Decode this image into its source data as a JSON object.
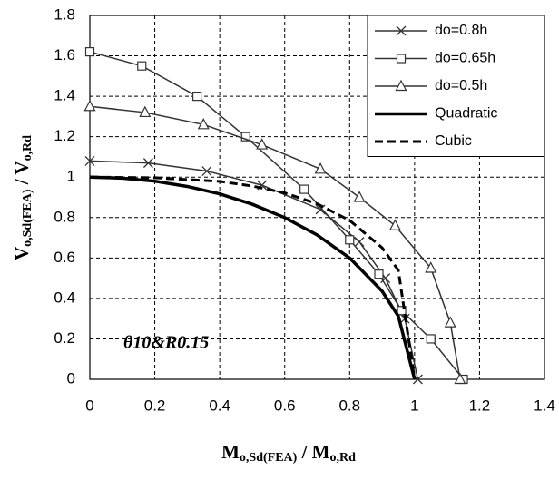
{
  "chart_data": {
    "type": "line",
    "x_label": [
      {
        "text": "M"
      },
      {
        "text": "o,Sd(FEA)",
        "sub": true
      },
      {
        "text": " / M"
      },
      {
        "text": "o,Rd",
        "sub": true
      }
    ],
    "y_label": [
      {
        "text": "V"
      },
      {
        "text": "o,Sd(FEA)",
        "sub": true
      },
      {
        "text": " / V"
      },
      {
        "text": "o,Rd",
        "sub": true
      }
    ],
    "annotation": "θ10&R0.15",
    "xlim": [
      0,
      1.4
    ],
    "xticks": [
      0,
      0.2,
      0.4,
      0.6,
      0.8,
      1,
      1.2,
      1.4
    ],
    "ylim": [
      0,
      1.8
    ],
    "yticks": [
      0,
      0.2,
      0.4,
      0.6,
      0.8,
      1,
      1.2,
      1.4,
      1.6,
      1.8
    ],
    "grid": true,
    "legend": "upper right",
    "series": [
      {
        "name": "do=0.8h",
        "color": "#333333",
        "marker": "x",
        "width": 1.5,
        "x": [
          0,
          0.18,
          0.36,
          0.53,
          0.71,
          0.83,
          0.91,
          0.97,
          1.01
        ],
        "values": [
          1.08,
          1.07,
          1.03,
          0.96,
          0.84,
          0.68,
          0.5,
          0.3,
          0
        ]
      },
      {
        "name": "do=0.65h",
        "color": "#333333",
        "marker": "square",
        "width": 1.5,
        "x": [
          0,
          0.16,
          0.33,
          0.48,
          0.66,
          0.8,
          0.89,
          0.96,
          1.05,
          1.15
        ],
        "values": [
          1.62,
          1.55,
          1.4,
          1.2,
          0.94,
          0.69,
          0.52,
          0.34,
          0.2,
          0
        ]
      },
      {
        "name": "do=0.5h",
        "color": "#333333",
        "marker": "triangle",
        "width": 1.5,
        "x": [
          0,
          0.17,
          0.35,
          0.53,
          0.71,
          0.83,
          0.94,
          1.05,
          1.11,
          1.14
        ],
        "values": [
          1.35,
          1.32,
          1.26,
          1.16,
          1.04,
          0.9,
          0.76,
          0.55,
          0.28,
          0
        ]
      },
      {
        "name": "Quadratic",
        "color": "#000000",
        "marker": "none",
        "width": 3.5,
        "x": [
          0,
          0.1,
          0.2,
          0.3,
          0.4,
          0.5,
          0.6,
          0.7,
          0.8,
          0.9,
          0.95,
          1
        ],
        "values": [
          1,
          0.995,
          0.98,
          0.954,
          0.917,
          0.866,
          0.8,
          0.714,
          0.6,
          0.436,
          0.312,
          0
        ]
      },
      {
        "name": "Cubic",
        "color": "#000000",
        "marker": "none",
        "width": 3,
        "dash": true,
        "x": [
          0,
          0.2,
          0.4,
          0.5,
          0.6,
          0.7,
          0.8,
          0.9,
          0.95,
          1
        ],
        "values": [
          1,
          0.997,
          0.979,
          0.956,
          0.922,
          0.868,
          0.786,
          0.651,
          0.539,
          0
        ]
      }
    ]
  }
}
